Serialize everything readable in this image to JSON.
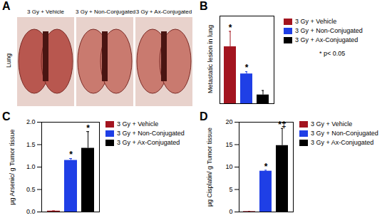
{
  "panel_a": {
    "panel": "A",
    "row_label": "Lung",
    "images": [
      {
        "label": "3 Gy + Vehicle"
      },
      {
        "label": "3 Gy + Non-Conjugated"
      },
      {
        "label": "3 Gy + Ax-Conjugated"
      }
    ]
  },
  "chart_data": [
    {
      "type": "bar",
      "panel": "B",
      "ylabel": "Metastatic lesion in lung",
      "categories": [
        null
      ],
      "series": [
        {
          "name": "3 Gy + Vehicle",
          "color": "#a3141f",
          "values": [
            13
          ],
          "errors": [
            3.5
          ],
          "mark_text": "*"
        },
        {
          "name": "3 Gy + Non-Conjugated",
          "color": "#1f3fe6",
          "values": [
            6.8
          ],
          "errors": [
            0.5
          ],
          "mark_text": "*"
        },
        {
          "name": "3 Gy + Ax-Conjugated",
          "color": "#000000",
          "values": [
            2
          ],
          "errors": [
            1
          ],
          "mark_text": null
        }
      ],
      "ylim": [
        0,
        20
      ],
      "tick_labels": false,
      "legend": "right",
      "annotations": [
        "* p< 0.05"
      ]
    },
    {
      "type": "bar",
      "panel": "C",
      "ylabel": "µg Arsenic/ g Tumor tissue",
      "categories": [
        null
      ],
      "series": [
        {
          "name": "3 Gy + Vehicle",
          "color": "#a3141f",
          "values": [
            0.02
          ],
          "errors": [
            0.005
          ],
          "mark_text": null
        },
        {
          "name": "3 Gy + Non-Conjugated",
          "color": "#1f3fe6",
          "values": [
            1.15
          ],
          "errors": [
            0.04
          ],
          "mark_text": "*"
        },
        {
          "name": "3 Gy + Ax-Conjugated",
          "color": "#000000",
          "values": [
            1.42
          ],
          "errors": [
            0.37
          ],
          "mark_text": "*"
        }
      ],
      "ylim": [
        0,
        2
      ],
      "yticks": [
        {
          "value": 0,
          "label": "0.0"
        },
        0.5,
        {
          "value": 1,
          "label": "1.0"
        },
        1.5,
        {
          "value": 2,
          "label": "2.0"
        }
      ],
      "legend": "right"
    },
    {
      "type": "bar",
      "panel": "D",
      "ylabel": "µg Cisplatin/ g Tumor tissue",
      "categories": [
        null
      ],
      "series": [
        {
          "name": "3 Gy + Vehicle",
          "color": "#a3141f",
          "values": [
            0.1
          ],
          "errors": [
            0.02
          ],
          "mark_text": null
        },
        {
          "name": "3 Gy + Non-Conjugated",
          "color": "#1f3fe6",
          "values": [
            9.1
          ],
          "errors": [
            0.2
          ],
          "mark_text": "*"
        },
        {
          "name": "3 Gy + Ax-Conjugated",
          "color": "#000000",
          "values": [
            14.8
          ],
          "errors": [
            3.8
          ],
          "mark_text": "*‡"
        }
      ],
      "ylim": [
        0,
        20
      ],
      "yticks": [
        0,
        5,
        10,
        15,
        20
      ],
      "legend": "right"
    }
  ]
}
